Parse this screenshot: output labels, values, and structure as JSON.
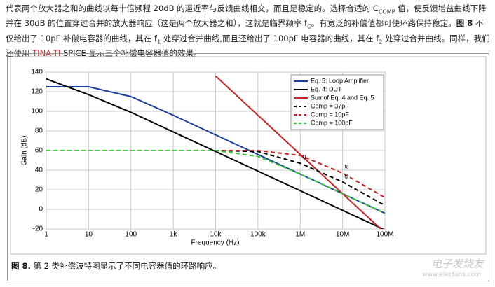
{
  "paragraph": [
    {
      "text": "代表两个放大器之和的曲线以每十倍频程 20dB 的逼近率与反馈曲线相交，而且是稳定的。选择合适的 C"
    },
    {
      "text": "COMP",
      "style": "sub"
    },
    {
      "text": " 值，使反馈增益曲线下降并在 30dB 的位置穿过合并的放大器响应（这是两个放大器之和），这就是临界频率 f"
    },
    {
      "text": "C",
      "style": "sub"
    },
    {
      "text": "。有宽泛的补偿值都可使环路保持稳定。"
    },
    {
      "text": "图 8",
      "style": "bold"
    },
    {
      "text": " 不仅给出了 10pF 补偿电容器的曲线，其在 f"
    },
    {
      "text": "1",
      "style": "sub"
    },
    {
      "text": " 处穿过合并曲线,而且还给出了 100pF 电容器的曲线，其在 f"
    },
    {
      "text": "2",
      "style": "sub"
    },
    {
      "text": " 处穿过合并曲线。同样，我们还使用 "
    },
    {
      "text": "TINA-TI",
      "style": "red"
    },
    {
      "text": " SPICE 显示三个补偿电容器值的效果。"
    }
  ],
  "chart_data": {
    "type": "line",
    "xlabel": "Frequency (Hz)",
    "ylabel": "Gain (dB)",
    "log_x": true,
    "grid": true,
    "x": [
      1,
      10,
      100,
      1000,
      10000,
      100000,
      1000000,
      10000000,
      100000000
    ],
    "xlim": [
      1,
      100000000
    ],
    "xticks": [
      1,
      10,
      100,
      {
        "value": 1000,
        "label": "1k"
      },
      {
        "value": 10000,
        "label": "10k"
      },
      {
        "value": 100000,
        "label": "100k"
      },
      {
        "value": 1000000,
        "label": "1M"
      },
      {
        "value": 10000000,
        "label": "10M"
      },
      {
        "value": 100000000,
        "label": "100M"
      }
    ],
    "ylim": [
      -20,
      140
    ],
    "yticks": [
      -20,
      0,
      20,
      40,
      60,
      80,
      100,
      120,
      140
    ],
    "legend": "upper right",
    "series": [
      {
        "name": "Eq. 5: Loop Amplifier",
        "color": "#1f3fa0",
        "dash": false,
        "values": [
          125,
          125,
          115,
          96,
          76,
          56,
          36,
          16,
          -4
        ]
      },
      {
        "name": "Eq. 4: DUT",
        "color": "#000000",
        "dash": false,
        "values": [
          133,
          117,
          99,
          79,
          59,
          39,
          19,
          -1,
          -21
        ]
      },
      {
        "name": "Sumof Eq. 4 and Eq. 5",
        "color": "#cc2222",
        "dash": false,
        "values": [
          null,
          null,
          null,
          null,
          136,
          96,
          56,
          16,
          -24
        ]
      },
      {
        "name": "Comp = 37pF",
        "color": "#000000",
        "dash": true,
        "values": [
          60,
          60,
          60,
          60,
          60,
          59,
          47,
          28,
          4
        ]
      },
      {
        "name": "Comp = 10pF",
        "color": "#cc2222",
        "dash": true,
        "values": [
          60,
          60,
          60,
          60,
          60,
          60,
          55,
          37,
          12
        ]
      },
      {
        "name": "Comp = 100pF",
        "color": "#33cc33",
        "dash": true,
        "values": [
          60,
          60,
          60,
          60,
          60,
          54,
          36,
          16,
          -4
        ]
      }
    ],
    "annotations": [
      {
        "text": "f1",
        "x": 1000000,
        "y": 53
      },
      {
        "text": "fc",
        "x": 10000000,
        "y": 43
      },
      {
        "text": "f2",
        "x": 10000000,
        "y": 33
      }
    ]
  },
  "caption": [
    {
      "text": "图 8.",
      "style": "bold"
    },
    {
      "text": " 第 2 类补偿波特图显示了不同电容器值的环路响应。"
    }
  ],
  "watermark": [
    "电子发烧友",
    "www.elecfans.com"
  ]
}
